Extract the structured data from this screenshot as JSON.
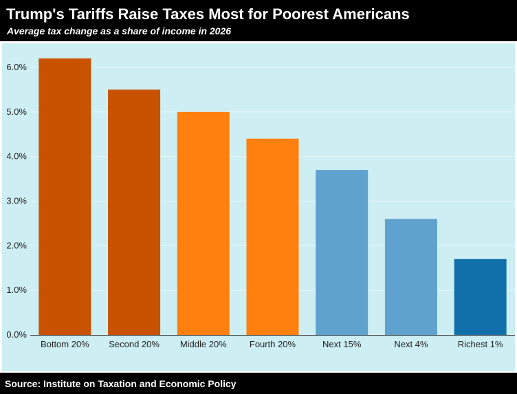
{
  "header": {
    "title": "Trump's Tariffs Raise Taxes Most for Poorest Americans",
    "subtitle": "Average tax change as a share of income in 2026"
  },
  "footer": {
    "source": "Source: Institute on Taxation and Economic Policy"
  },
  "colors": {
    "background_panel": "#cdeef2",
    "dark_orange": "#c85200",
    "orange": "#ff800e",
    "light_blue": "#5fa2ce",
    "dark_blue": "#1170aa"
  },
  "chart_data": {
    "type": "bar",
    "title": "Trump's Tariffs Raise Taxes Most for Poorest Americans",
    "subtitle": "Average tax change as a share of income in 2026",
    "xlabel": "",
    "ylabel": "",
    "categories": [
      "Bottom 20%",
      "Second 20%",
      "Middle 20%",
      "Fourth 20%",
      "Next 15%",
      "Next 4%",
      "Richest 1%"
    ],
    "values": [
      6.2,
      5.5,
      5.0,
      4.4,
      3.7,
      2.6,
      1.7
    ],
    "bar_colors": [
      "#c85200",
      "#c85200",
      "#ff800e",
      "#ff800e",
      "#5fa2ce",
      "#5fa2ce",
      "#1170aa"
    ],
    "ylim": [
      0,
      6.2
    ],
    "yticks": [
      0,
      1,
      2,
      3,
      4,
      5,
      6
    ],
    "ytick_labels": [
      "0.0%",
      "1.0%",
      "2.0%",
      "3.0%",
      "4.0%",
      "5.0%",
      "6.0%"
    ],
    "grid": true,
    "legend": "none"
  }
}
